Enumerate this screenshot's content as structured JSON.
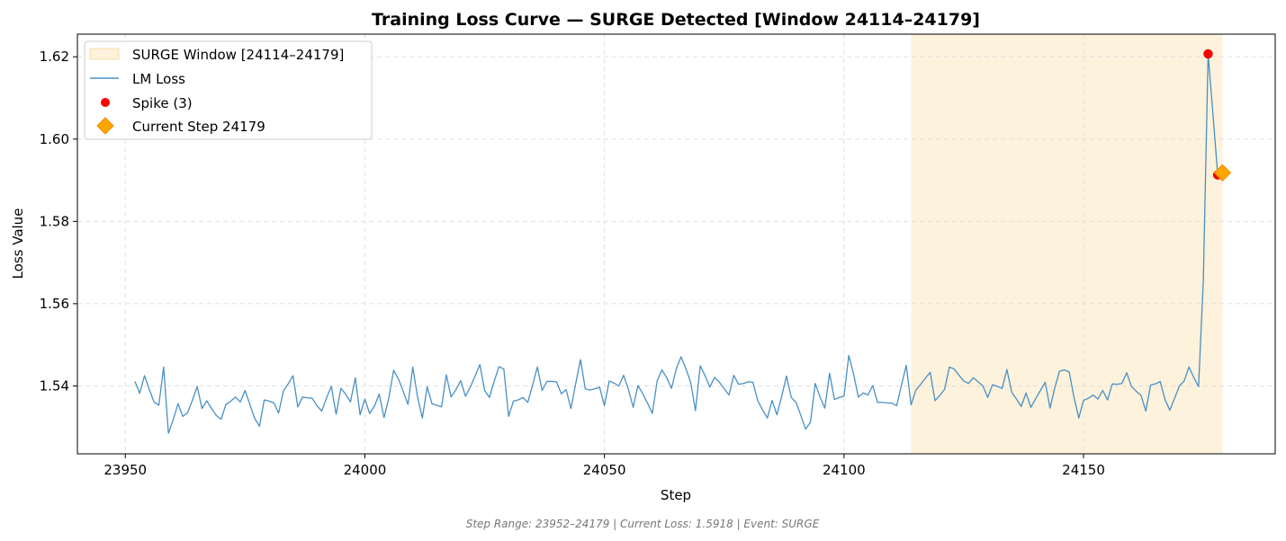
{
  "chart_data": {
    "type": "line",
    "title": "Training Loss Curve — SURGE Detected [Window 24114–24179]",
    "xlabel": "Step",
    "ylabel": "Loss Value",
    "xlim": [
      23940,
      24190
    ],
    "ylim": [
      1.5235,
      1.6255
    ],
    "x_ticks": [
      23950,
      24000,
      24050,
      24100,
      24150
    ],
    "y_ticks": [
      1.54,
      1.56,
      1.58,
      1.6,
      1.62
    ],
    "x_tick_labels": [
      "23950",
      "24000",
      "24050",
      "24100",
      "24150"
    ],
    "y_tick_labels": [
      "1.54",
      "1.56",
      "1.58",
      "1.60",
      "1.62"
    ],
    "grid": true,
    "legend_position": "top-left",
    "surge_window": {
      "label": "SURGE Window [24114–24179]",
      "start": 24114,
      "end": 24179,
      "color": "#fdf2dc"
    },
    "series": [
      {
        "name": "LM Loss",
        "color": "#4a90c4",
        "x_start": 23952,
        "x_step": 1,
        "values": [
          1.5411,
          1.5382,
          1.5425,
          1.5392,
          1.5361,
          1.5353,
          1.5446,
          1.5285,
          1.5318,
          1.5357,
          1.5326,
          1.5335,
          1.5365,
          1.5399,
          1.5345,
          1.5364,
          1.5345,
          1.5328,
          1.5319,
          1.5355,
          1.5363,
          1.5373,
          1.5361,
          1.5389,
          1.5355,
          1.5321,
          1.5302,
          1.5366,
          1.5363,
          1.5359,
          1.5334,
          1.5388,
          1.5405,
          1.5425,
          1.5349,
          1.5373,
          1.5371,
          1.537,
          1.5352,
          1.5339,
          1.5371,
          1.5399,
          1.5331,
          1.5394,
          1.538,
          1.5361,
          1.542,
          1.533,
          1.5368,
          1.5333,
          1.5351,
          1.538,
          1.5323,
          1.5371,
          1.5438,
          1.5417,
          1.5387,
          1.5355,
          1.5446,
          1.5373,
          1.5322,
          1.5398,
          1.5357,
          1.5353,
          1.5349,
          1.5427,
          1.5373,
          1.5391,
          1.5413,
          1.5375,
          1.5397,
          1.5424,
          1.5452,
          1.5389,
          1.5372,
          1.5412,
          1.5447,
          1.5441,
          1.5326,
          1.5363,
          1.5366,
          1.5372,
          1.536,
          1.5402,
          1.5446,
          1.5389,
          1.5411,
          1.5411,
          1.541,
          1.5381,
          1.5391,
          1.5345,
          1.5405,
          1.5464,
          1.5393,
          1.539,
          1.5393,
          1.5397,
          1.5352,
          1.5412,
          1.5407,
          1.54,
          1.5426,
          1.5392,
          1.5348,
          1.5401,
          1.5381,
          1.5358,
          1.5333,
          1.5412,
          1.5439,
          1.542,
          1.5394,
          1.5442,
          1.5471,
          1.5442,
          1.5409,
          1.534,
          1.5449,
          1.5425,
          1.5397,
          1.5421,
          1.5409,
          1.5393,
          1.5378,
          1.5426,
          1.5404,
          1.5406,
          1.541,
          1.5409,
          1.5364,
          1.5342,
          1.5322,
          1.5365,
          1.533,
          1.5375,
          1.5424,
          1.5372,
          1.536,
          1.5328,
          1.5295,
          1.5312,
          1.5406,
          1.5373,
          1.5346,
          1.5431,
          1.5367,
          1.5372,
          1.5375,
          1.5474,
          1.5429,
          1.5373,
          1.5383,
          1.5378,
          1.5401,
          1.536,
          1.536,
          1.5359,
          1.5358,
          1.5352,
          1.5402,
          1.545,
          1.5354,
          1.539,
          1.5404,
          1.5419,
          1.5433,
          1.5364,
          1.5377,
          1.5392,
          1.5446,
          1.5441,
          1.5426,
          1.5412,
          1.5406,
          1.542,
          1.541,
          1.54,
          1.5372,
          1.5403,
          1.5399,
          1.5394,
          1.544,
          1.5385,
          1.5368,
          1.535,
          1.5383,
          1.5348,
          1.5369,
          1.5389,
          1.5409,
          1.5346,
          1.5396,
          1.5436,
          1.5439,
          1.5434,
          1.5373,
          1.5322,
          1.5365,
          1.537,
          1.5378,
          1.5368,
          1.5389,
          1.5366,
          1.5405,
          1.5404,
          1.5406,
          1.5432,
          1.5399,
          1.5387,
          1.5377,
          1.5339,
          1.5402,
          1.5405,
          1.5411,
          1.5367,
          1.5341,
          1.537,
          1.54,
          1.5412,
          1.5446,
          1.5421,
          1.5398,
          1.5656,
          1.6207,
          1.6062,
          1.5913,
          1.5918
        ]
      }
    ],
    "spikes": {
      "name": "Spike (3)",
      "color": "#ff0000",
      "points": [
        {
          "x": 24176,
          "y": 1.6207
        },
        {
          "x": 24178,
          "y": 1.5913
        },
        {
          "x": 24179,
          "y": 1.5918
        }
      ]
    },
    "current_step": {
      "name": "Current Step 24179",
      "color": "#ffa500",
      "x": 24179,
      "y": 1.5918
    }
  },
  "footer_text": "Step Range: 23952–24179 | Current Loss: 1.5918 | Event: SURGE",
  "colors": {
    "line": "#4a90c4",
    "spike": "#ff0000",
    "current": "#ffa500",
    "window": "#fdf2dc"
  }
}
